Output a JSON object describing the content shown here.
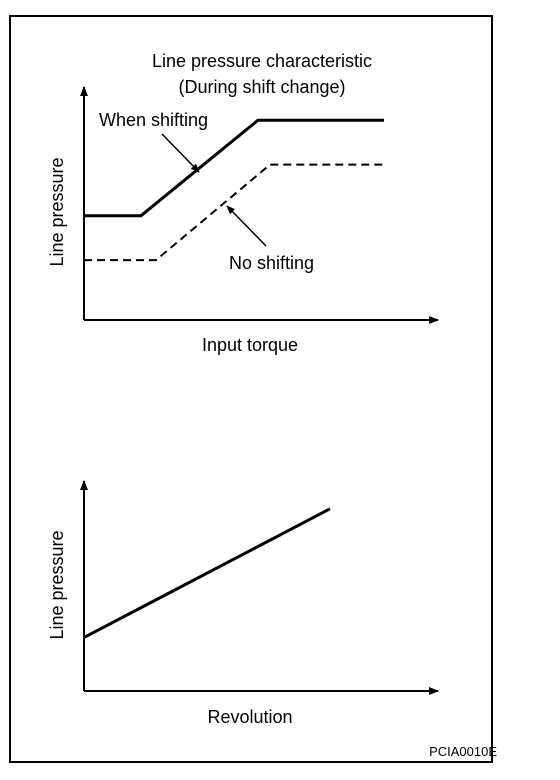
{
  "figure_code": "PCIA0010E",
  "top_chart": {
    "title_line1": "Line pressure characteristic",
    "title_line2": "(During shift change)",
    "ylabel": "Line pressure",
    "xlabel": "Input torque",
    "callout_when_shifting": "When shifting",
    "callout_no_shifting": "No shifting"
  },
  "bottom_chart": {
    "ylabel": "Line pressure",
    "xlabel": "Revolution"
  },
  "chart_data": [
    {
      "type": "line",
      "title": "Line pressure characteristic (During shift change)",
      "xlabel": "Input torque",
      "ylabel": "Line pressure",
      "grid": false,
      "axes_numeric_ticks": false,
      "series": [
        {
          "name": "When shifting",
          "style": "solid",
          "x": [
            0,
            0.19,
            0.58,
            1.0
          ],
          "y": [
            0.47,
            0.47,
            0.9,
            0.9
          ]
        },
        {
          "name": "No shifting",
          "style": "dashed",
          "x": [
            0,
            0.24,
            0.62,
            1.0
          ],
          "y": [
            0.27,
            0.27,
            0.7,
            0.7
          ]
        }
      ]
    },
    {
      "type": "line",
      "xlabel": "Revolution",
      "ylabel": "Line pressure",
      "grid": false,
      "axes_numeric_ticks": false,
      "series": [
        {
          "style": "solid",
          "x": [
            0,
            0.82
          ],
          "y": [
            0.27,
            0.92
          ]
        }
      ]
    }
  ]
}
